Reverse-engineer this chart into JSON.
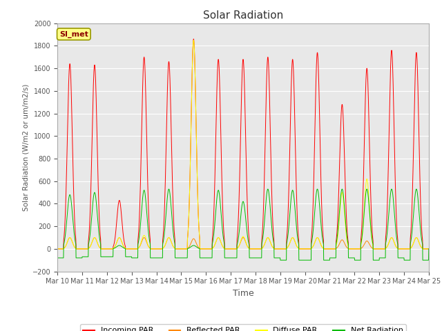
{
  "title": "Solar Radiation",
  "ylabel": "Solar Radiation (W/m2 or um/m2/s)",
  "xlabel": "Time",
  "ylim": [
    -200,
    2000
  ],
  "yticks": [
    -200,
    0,
    200,
    400,
    600,
    800,
    1000,
    1200,
    1400,
    1600,
    1800,
    2000
  ],
  "fig_bg_color": "#ffffff",
  "plot_bg_color": "#e8e8e8",
  "grid_color": "#ffffff",
  "colors": {
    "incoming": "#ff0000",
    "reflected": "#ff8800",
    "diffuse": "#ffff00",
    "net": "#00bb00"
  },
  "legend_labels": [
    "Incoming PAR",
    "Reflected PAR",
    "Diffuse PAR",
    "Net Radiation"
  ],
  "annotation_text": "SI_met",
  "annotation_box_color": "#ffff88",
  "annotation_box_edge": "#999900",
  "num_days": 15,
  "start_day": 10,
  "incoming_peaks": [
    1640,
    1630,
    430,
    1700,
    1660,
    1860,
    1680,
    1680,
    1700,
    1680,
    1740,
    1280,
    1600,
    1760,
    1740
  ],
  "reflected_peaks": [
    100,
    100,
    100,
    100,
    100,
    90,
    100,
    100,
    100,
    100,
    100,
    80,
    70,
    100,
    100
  ],
  "diffuse_peaks": [
    100,
    100,
    100,
    120,
    100,
    1850,
    100,
    110,
    100,
    100,
    100,
    500,
    620,
    100,
    100
  ],
  "net_peaks": [
    480,
    500,
    30,
    520,
    530,
    30,
    520,
    420,
    530,
    520,
    530,
    530,
    530,
    530,
    530
  ],
  "net_min": [
    -80,
    -70,
    -70,
    -80,
    -80,
    -80,
    -80,
    -80,
    -80,
    -100,
    -100,
    -80,
    -100,
    -80,
    -100
  ]
}
